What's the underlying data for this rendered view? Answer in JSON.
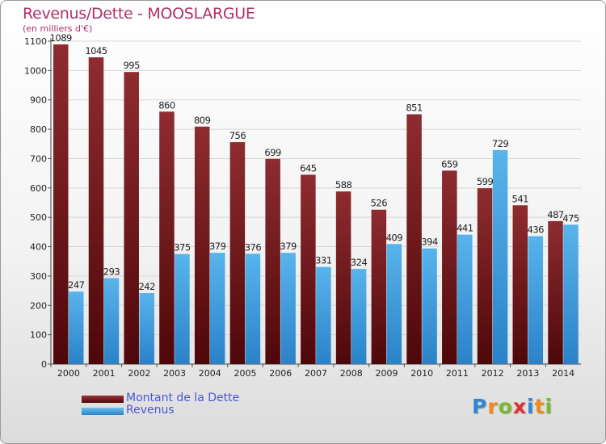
{
  "header": {
    "title": "Revenus/Dette - MOOSLARGUE",
    "unit": "(en milliers d'€)"
  },
  "colors": {
    "title": "#b0306a",
    "dette": "#7a1a1c",
    "revenus": "#3d9ee0",
    "legend_text": "#4a57d8"
  },
  "legend": {
    "dette_label": "Montant de la Dette",
    "revenus_label": "Revenus"
  },
  "logo": {
    "letters": [
      "P",
      "r",
      "o",
      "x",
      "i",
      "t",
      "i"
    ],
    "colors": [
      "#2f86d6",
      "#f08a1c",
      "#7ab830",
      "#e03030",
      "#2f86d6",
      "#f08a1c",
      "#7ab830"
    ]
  },
  "chart_data": {
    "type": "bar",
    "title": "Revenus/Dette - MOOSLARGUE",
    "ylabel": "(en milliers d'€)",
    "ylim": [
      0,
      1100
    ],
    "ytick_step": 100,
    "grid": "horizontal",
    "legend_position": "bottom-left",
    "categories": [
      "2000",
      "2001",
      "2002",
      "2003",
      "2004",
      "2005",
      "2006",
      "2007",
      "2008",
      "2009",
      "2010",
      "2011",
      "2012",
      "2013",
      "2014"
    ],
    "series": [
      {
        "name": "Montant de la Dette",
        "values": [
          1089,
          1045,
          995,
          860,
          809,
          756,
          699,
          645,
          588,
          526,
          851,
          659,
          599,
          541,
          487
        ]
      },
      {
        "name": "Revenus",
        "values": [
          247,
          293,
          242,
          375,
          379,
          376,
          379,
          331,
          324,
          409,
          394,
          441,
          729,
          436,
          475
        ]
      }
    ]
  }
}
